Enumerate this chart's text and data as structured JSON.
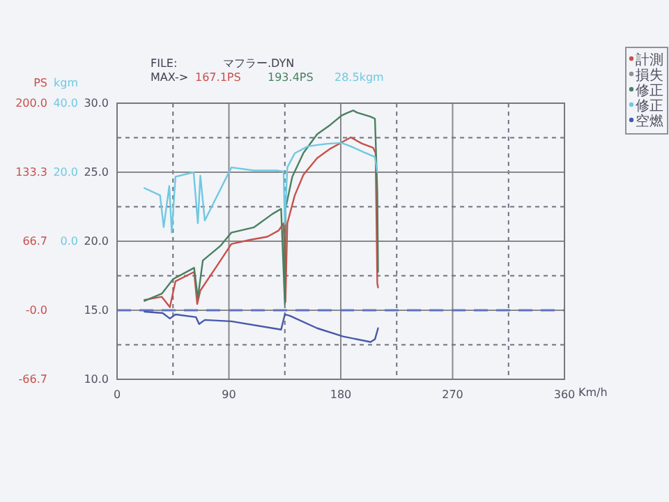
{
  "chart_data": {
    "type": "line",
    "xlabel": "Km/h",
    "y2label": "PS",
    "y3label": "kgm",
    "annotations": [
      "FILE:",
      "マフラー.DYN",
      "MAX->",
      "167.1PS",
      "193.4PS",
      "28.5kgm"
    ],
    "xlim": [
      0,
      360
    ],
    "xticks": [
      0,
      {
        "value": 45,
        "label": null
      },
      90,
      {
        "value": 135,
        "label": null
      },
      180,
      {
        "value": 225,
        "label": null
      },
      270,
      {
        "value": 315,
        "label": null
      },
      360
    ],
    "ylim": [
      10,
      30
    ],
    "yticks": [
      {
        "value": 10,
        "label": "10.0"
      },
      {
        "value": 12.5,
        "label": null
      },
      {
        "value": 15,
        "label": "15.0"
      },
      {
        "value": 17.5,
        "label": null
      },
      {
        "value": 20,
        "label": "20.0"
      },
      {
        "value": 22.5,
        "label": null
      },
      {
        "value": 25,
        "label": "25.0"
      },
      {
        "value": 27.5,
        "label": null
      },
      {
        "value": 30,
        "label": "30.0"
      }
    ],
    "y2lim": [
      -66.7,
      200
    ],
    "y2ticks": [
      {
        "value": -66.7,
        "label": "-66.7"
      },
      {
        "value": 0,
        "label": "-0.0"
      },
      {
        "value": 66.7,
        "label": "66.7"
      },
      {
        "value": 133.3,
        "label": "133.3"
      },
      {
        "value": 200,
        "label": "200.0"
      }
    ],
    "y3lim": [
      -40,
      40
    ],
    "y3ticks": [
      {
        "value": 0,
        "label": "0.0"
      },
      {
        "value": 20,
        "label": "20.0"
      },
      {
        "value": 40,
        "label": "40.0"
      }
    ],
    "grid": true,
    "legend": "top right",
    "line_style": "solid",
    "marker": "none",
    "ref_lines": [
      {
        "axis": "y",
        "value": 15,
        "label": null,
        "color": "#6070c0",
        "line_style": "dashed"
      }
    ],
    "series": [
      {
        "name": "計測",
        "color": "#c8504a",
        "axis": "y2",
        "x": [
          22,
          36,
          42.5,
          47,
          62,
          64.5,
          67,
          81,
          92,
          107,
          121,
          130,
          134,
          135.5,
          137,
          143,
          150,
          161,
          171.5,
          182,
          188,
          197,
          206,
          208,
          209.4,
          210
        ],
        "values": [
          10,
          13,
          3,
          28,
          37,
          6,
          19,
          44,
          64,
          68,
          71,
          77,
          84,
          8,
          84,
          111,
          131,
          147,
          156,
          163,
          167,
          161,
          157,
          152,
          26,
          22
        ]
      },
      {
        "name": "損失",
        "color": "#909090",
        "axis": "y2"
      },
      {
        "name": "修正",
        "color": "#4a8060",
        "axis": "y2",
        "x": [
          22,
          36,
          45,
          62,
          65,
          69,
          83,
          92,
          110,
          125,
          132,
          135,
          135.5,
          141,
          150,
          161,
          171.5,
          180.5,
          184,
          190,
          193,
          204,
          207.5,
          209.4,
          210
        ],
        "values": [
          9,
          16,
          30,
          41,
          12,
          48,
          62,
          75,
          80,
          93,
          98,
          6,
          98,
          129,
          152,
          170,
          179,
          188,
          190,
          193,
          191,
          187,
          185,
          115,
          37
        ]
      },
      {
        "name": "修正",
        "color": "#70c8e0",
        "axis": "y3",
        "x": [
          22,
          34.6,
          37.5,
          42,
          44,
          47,
          61.6,
          65,
          67,
          70.6,
          92,
          110,
          128,
          134,
          135,
          137,
          143,
          153.5,
          168,
          180.5,
          188,
          198.6,
          207.5,
          209.4
        ],
        "values": [
          15.4,
          13.3,
          4.1,
          16,
          2.5,
          18.7,
          20,
          5.2,
          19,
          6,
          21.4,
          20.5,
          20.5,
          20.2,
          5,
          21.4,
          25.5,
          27.5,
          28.2,
          28.5,
          27.5,
          25.8,
          24.4,
          20.1
        ]
      },
      {
        "name": "空燃",
        "color": "#4858a8",
        "axis": "y",
        "x": [
          22,
          36.7,
          42.5,
          47,
          63.5,
          66,
          70.6,
          92,
          132,
          135,
          139,
          161,
          182,
          204,
          207.5,
          210
        ],
        "values": [
          14.9,
          14.8,
          14.4,
          14.7,
          14.5,
          14,
          14.3,
          14.2,
          13.6,
          14.7,
          14.6,
          13.7,
          13.1,
          12.7,
          12.9,
          13.7
        ]
      }
    ]
  }
}
